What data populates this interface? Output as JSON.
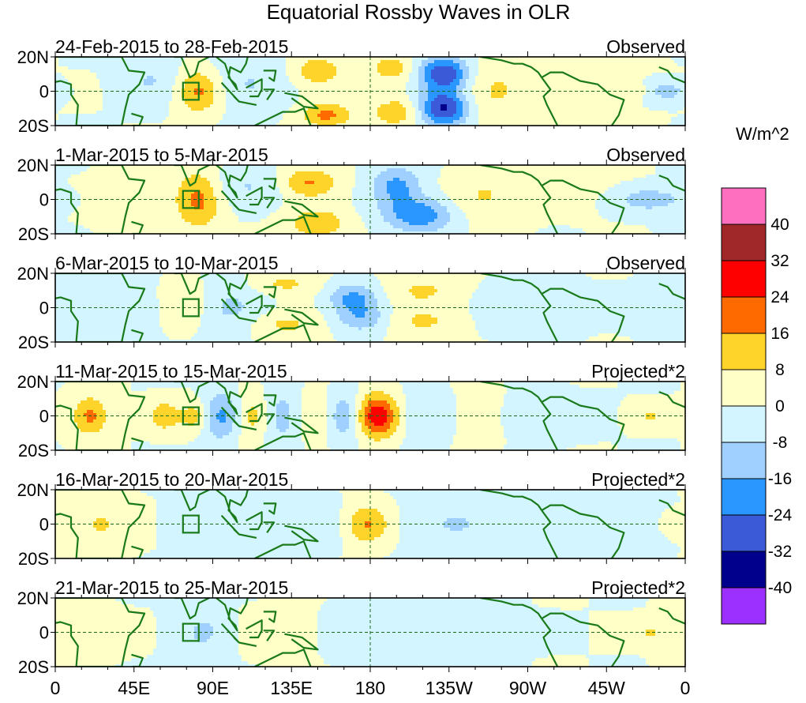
{
  "chart_data": {
    "type": "heatmap",
    "title": "Equatorial Rossby Waves in OLR",
    "colorbar": {
      "unit_label": "W/m^2",
      "levels": [
        40,
        32,
        24,
        16,
        8,
        0,
        -8,
        -16,
        -24,
        -32,
        -40
      ],
      "colors": [
        "#ff6fc0",
        "#a02828",
        "#ff0000",
        "#ff6a00",
        "#ffd42a",
        "#ffffc8",
        "#d2f5ff",
        "#9fd0ff",
        "#2a96ff",
        "#3a5ad8",
        "#00008c",
        "#9b30ff"
      ]
    },
    "x_ticks": [
      "0",
      "45E",
      "90E",
      "135E",
      "180",
      "135W",
      "90W",
      "45W",
      "0"
    ],
    "x_values": [
      0,
      45,
      90,
      135,
      180,
      225,
      270,
      315,
      360
    ],
    "y_ticks": [
      "20N",
      "0",
      "20S"
    ],
    "y_values": [
      20,
      0,
      -20
    ],
    "ylim": [
      -20,
      20
    ],
    "xlim": [
      0,
      360
    ],
    "panels": [
      {
        "period": "24-Feb-2015 to 28-Feb-2015",
        "type_label": "Observed",
        "features": [
          {
            "lon": 82,
            "lat": 0,
            "sx": 9,
            "sy": 9,
            "amp": 18
          },
          {
            "lon": 150,
            "lat": 12,
            "sx": 10,
            "sy": 6,
            "amp": 14
          },
          {
            "lon": 155,
            "lat": -14,
            "sx": 10,
            "sy": 5,
            "amp": 18
          },
          {
            "lon": 192,
            "lat": 13,
            "sx": 9,
            "sy": 6,
            "amp": 12
          },
          {
            "lon": 195,
            "lat": -12,
            "sx": 10,
            "sy": 6,
            "amp": 14
          },
          {
            "lon": 222,
            "lat": 10,
            "sx": 10,
            "sy": 7,
            "amp": -32
          },
          {
            "lon": 222,
            "lat": -10,
            "sx": 10,
            "sy": 7,
            "amp": -34
          },
          {
            "lon": 55,
            "lat": 6,
            "sx": 12,
            "sy": 10,
            "amp": -8
          },
          {
            "lon": 110,
            "lat": 5,
            "sx": 15,
            "sy": 12,
            "amp": -8
          },
          {
            "lon": 252,
            "lat": 0,
            "sx": 14,
            "sy": 12,
            "amp": 9
          },
          {
            "lon": 300,
            "lat": 5,
            "sx": 22,
            "sy": 14,
            "amp": 3
          },
          {
            "lon": 350,
            "lat": 0,
            "sx": 8,
            "sy": 4,
            "amp": -12
          },
          {
            "lon": 330,
            "lat": 0,
            "sx": 5,
            "sy": 3,
            "amp": 8
          }
        ]
      },
      {
        "period": "1-Mar-2015 to 5-Mar-2015",
        "type_label": "Observed",
        "features": [
          {
            "lon": 82,
            "lat": 0,
            "sx": 9,
            "sy": 12,
            "amp": 18
          },
          {
            "lon": 145,
            "lat": 10,
            "sx": 11,
            "sy": 6,
            "amp": 17
          },
          {
            "lon": 150,
            "lat": -14,
            "sx": 12,
            "sy": 6,
            "amp": 15
          },
          {
            "lon": 195,
            "lat": 8,
            "sx": 10,
            "sy": 8,
            "amp": -18
          },
          {
            "lon": 208,
            "lat": -9,
            "sx": 14,
            "sy": 7,
            "amp": -22
          },
          {
            "lon": 245,
            "lat": 2,
            "sx": 14,
            "sy": 10,
            "amp": 9
          },
          {
            "lon": 110,
            "lat": 8,
            "sx": 15,
            "sy": 8,
            "amp": -8
          },
          {
            "lon": 45,
            "lat": 0,
            "sx": 14,
            "sy": 10,
            "amp": 5
          },
          {
            "lon": 340,
            "lat": 0,
            "sx": 15,
            "sy": 5,
            "amp": -13
          },
          {
            "lon": 300,
            "lat": 8,
            "sx": 18,
            "sy": 10,
            "amp": 3
          }
        ]
      },
      {
        "period": "6-Mar-2015 to 10-Mar-2015",
        "type_label": "Observed",
        "features": [
          {
            "lon": 75,
            "lat": 2,
            "sx": 9,
            "sy": 10,
            "amp": 10
          },
          {
            "lon": 130,
            "lat": 14,
            "sx": 14,
            "sy": 5,
            "amp": 10
          },
          {
            "lon": 130,
            "lat": -10,
            "sx": 14,
            "sy": 6,
            "amp": 10
          },
          {
            "lon": 170,
            "lat": 6,
            "sx": 10,
            "sy": 6,
            "amp": -17
          },
          {
            "lon": 175,
            "lat": -6,
            "sx": 10,
            "sy": 6,
            "amp": -14
          },
          {
            "lon": 210,
            "lat": 10,
            "sx": 14,
            "sy": 6,
            "amp": 9
          },
          {
            "lon": 210,
            "lat": -8,
            "sx": 14,
            "sy": 6,
            "amp": 9
          },
          {
            "lon": 100,
            "lat": 0,
            "sx": 16,
            "sy": 12,
            "amp": -9
          },
          {
            "lon": 40,
            "lat": 0,
            "sx": 14,
            "sy": 10,
            "amp": -5
          },
          {
            "lon": 340,
            "lat": 0,
            "sx": 15,
            "sy": 6,
            "amp": -8
          },
          {
            "lon": 270,
            "lat": 0,
            "sx": 20,
            "sy": 12,
            "amp": -3
          }
        ]
      },
      {
        "period": "11-Mar-2015 to 15-Mar-2015",
        "type_label": "Projected*2",
        "features": [
          {
            "lon": 20,
            "lat": 0,
            "sx": 7,
            "sy": 8,
            "amp": 18
          },
          {
            "lon": 62,
            "lat": 0,
            "sx": 6,
            "sy": 6,
            "amp": 14
          },
          {
            "lon": 80,
            "lat": 0,
            "sx": 6,
            "sy": 6,
            "amp": 14
          },
          {
            "lon": 95,
            "lat": 0,
            "sx": 8,
            "sy": 10,
            "amp": -18
          },
          {
            "lon": 112,
            "lat": 0,
            "sx": 7,
            "sy": 10,
            "amp": 12
          },
          {
            "lon": 130,
            "lat": 0,
            "sx": 8,
            "sy": 12,
            "amp": -12
          },
          {
            "lon": 150,
            "lat": 0,
            "sx": 8,
            "sy": 10,
            "amp": 12
          },
          {
            "lon": 166,
            "lat": 0,
            "sx": 9,
            "sy": 10,
            "amp": -20
          },
          {
            "lon": 183,
            "lat": 0,
            "sx": 10,
            "sy": 9,
            "amp": 34
          },
          {
            "lon": 210,
            "lat": 0,
            "sx": 14,
            "sy": 10,
            "amp": -10
          },
          {
            "lon": 235,
            "lat": 0,
            "sx": 14,
            "sy": 10,
            "amp": 5
          },
          {
            "lon": 280,
            "lat": 0,
            "sx": 18,
            "sy": 8,
            "amp": -5
          },
          {
            "lon": 340,
            "lat": 0,
            "sx": 8,
            "sy": 4,
            "amp": 8
          }
        ]
      },
      {
        "period": "16-Mar-2015 to 20-Mar-2015",
        "type_label": "Projected*2",
        "features": [
          {
            "lon": 25,
            "lat": 0,
            "sx": 14,
            "sy": 10,
            "amp": 9
          },
          {
            "lon": 80,
            "lat": 0,
            "sx": 12,
            "sy": 8,
            "amp": -5
          },
          {
            "lon": 110,
            "lat": 0,
            "sx": 16,
            "sy": 10,
            "amp": -6
          },
          {
            "lon": 150,
            "lat": 0,
            "sx": 12,
            "sy": 10,
            "amp": -6
          },
          {
            "lon": 178,
            "lat": 0,
            "sx": 9,
            "sy": 8,
            "amp": 17
          },
          {
            "lon": 230,
            "lat": 0,
            "sx": 20,
            "sy": 10,
            "amp": -8
          },
          {
            "lon": 320,
            "lat": 0,
            "sx": 24,
            "sy": 12,
            "amp": -4
          },
          {
            "lon": 355,
            "lat": 0,
            "sx": 6,
            "sy": 5,
            "amp": 8
          }
        ]
      },
      {
        "period": "21-Mar-2015 to 25-Mar-2015",
        "type_label": "Projected*2",
        "features": [
          {
            "lon": 15,
            "lat": 0,
            "sx": 14,
            "sy": 10,
            "amp": 5
          },
          {
            "lon": 85,
            "lat": 0,
            "sx": 10,
            "sy": 10,
            "amp": -9
          },
          {
            "lon": 130,
            "lat": 0,
            "sx": 16,
            "sy": 10,
            "amp": 4
          },
          {
            "lon": 200,
            "lat": 0,
            "sx": 30,
            "sy": 12,
            "amp": -5
          },
          {
            "lon": 340,
            "lat": 0,
            "sx": 6,
            "sy": 4,
            "amp": 9
          }
        ]
      }
    ]
  }
}
